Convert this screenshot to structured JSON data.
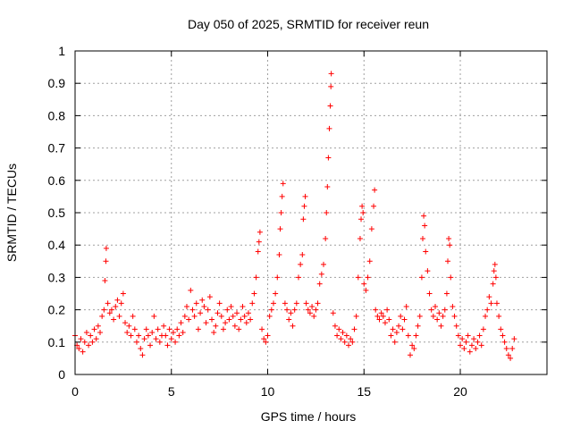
{
  "chart_data": {
    "type": "scatter",
    "title": "Day 050 of 2025, SRMTID for receiver reun",
    "xlabel": "GPS time / hours",
    "ylabel": "SRMTID / TECUs",
    "xlim": [
      0,
      24.5
    ],
    "ylim": [
      0,
      1
    ],
    "xticks": [
      0,
      5,
      10,
      15,
      20
    ],
    "xtick_labels": [
      "0",
      "5",
      "10",
      "15",
      "20"
    ],
    "yticks": [
      0,
      0.1,
      0.2,
      0.3,
      0.4,
      0.5,
      0.6,
      0.7,
      0.8,
      0.9,
      1
    ],
    "ytick_labels": [
      "0",
      "0.1",
      "0.2",
      "0.3",
      "0.4",
      "0.5",
      "0.6",
      "0.7",
      "0.8",
      "0.9",
      "1"
    ],
    "grid": true,
    "marker": "+",
    "marker_color": "#ff0000",
    "series": [
      {
        "name": "SRMTID",
        "points": [
          [
            0.0,
            0.12
          ],
          [
            0.1,
            0.09
          ],
          [
            0.2,
            0.08
          ],
          [
            0.3,
            0.11
          ],
          [
            0.4,
            0.07
          ],
          [
            0.5,
            0.1
          ],
          [
            0.6,
            0.13
          ],
          [
            0.7,
            0.09
          ],
          [
            0.8,
            0.12
          ],
          [
            0.9,
            0.1
          ],
          [
            1.0,
            0.14
          ],
          [
            1.1,
            0.11
          ],
          [
            1.2,
            0.15
          ],
          [
            1.3,
            0.13
          ],
          [
            1.4,
            0.18
          ],
          [
            1.5,
            0.2
          ],
          [
            1.55,
            0.29
          ],
          [
            1.6,
            0.35
          ],
          [
            1.62,
            0.39
          ],
          [
            1.7,
            0.22
          ],
          [
            1.8,
            0.19
          ],
          [
            1.9,
            0.2
          ],
          [
            2.0,
            0.17
          ],
          [
            2.1,
            0.21
          ],
          [
            2.2,
            0.23
          ],
          [
            2.3,
            0.18
          ],
          [
            2.4,
            0.22
          ],
          [
            2.5,
            0.25
          ],
          [
            2.6,
            0.16
          ],
          [
            2.7,
            0.13
          ],
          [
            2.8,
            0.15
          ],
          [
            2.9,
            0.12
          ],
          [
            3.0,
            0.18
          ],
          [
            3.1,
            0.14
          ],
          [
            3.2,
            0.1
          ],
          [
            3.3,
            0.12
          ],
          [
            3.4,
            0.08
          ],
          [
            3.5,
            0.06
          ],
          [
            3.6,
            0.11
          ],
          [
            3.7,
            0.14
          ],
          [
            3.8,
            0.12
          ],
          [
            3.9,
            0.09
          ],
          [
            4.0,
            0.13
          ],
          [
            4.1,
            0.18
          ],
          [
            4.2,
            0.11
          ],
          [
            4.3,
            0.14
          ],
          [
            4.4,
            0.1
          ],
          [
            4.5,
            0.12
          ],
          [
            4.6,
            0.15
          ],
          [
            4.7,
            0.12
          ],
          [
            4.8,
            0.09
          ],
          [
            4.9,
            0.14
          ],
          [
            5.0,
            0.11
          ],
          [
            5.1,
            0.13
          ],
          [
            5.2,
            0.1
          ],
          [
            5.3,
            0.14
          ],
          [
            5.4,
            0.12
          ],
          [
            5.5,
            0.16
          ],
          [
            5.6,
            0.13
          ],
          [
            5.7,
            0.18
          ],
          [
            5.8,
            0.21
          ],
          [
            5.9,
            0.17
          ],
          [
            6.0,
            0.26
          ],
          [
            6.1,
            0.2
          ],
          [
            6.2,
            0.18
          ],
          [
            6.3,
            0.22
          ],
          [
            6.4,
            0.14
          ],
          [
            6.5,
            0.19
          ],
          [
            6.6,
            0.23
          ],
          [
            6.7,
            0.21
          ],
          [
            6.8,
            0.16
          ],
          [
            6.9,
            0.2
          ],
          [
            7.0,
            0.24
          ],
          [
            7.1,
            0.17
          ],
          [
            7.2,
            0.13
          ],
          [
            7.3,
            0.15
          ],
          [
            7.4,
            0.19
          ],
          [
            7.5,
            0.22
          ],
          [
            7.6,
            0.18
          ],
          [
            7.7,
            0.14
          ],
          [
            7.8,
            0.16
          ],
          [
            7.9,
            0.2
          ],
          [
            8.0,
            0.17
          ],
          [
            8.1,
            0.21
          ],
          [
            8.2,
            0.18
          ],
          [
            8.3,
            0.15
          ],
          [
            8.4,
            0.19
          ],
          [
            8.5,
            0.14
          ],
          [
            8.6,
            0.17
          ],
          [
            8.7,
            0.21
          ],
          [
            8.8,
            0.18
          ],
          [
            8.9,
            0.16
          ],
          [
            9.0,
            0.19
          ],
          [
            9.1,
            0.17
          ],
          [
            9.2,
            0.22
          ],
          [
            9.3,
            0.25
          ],
          [
            9.4,
            0.3
          ],
          [
            9.5,
            0.38
          ],
          [
            9.55,
            0.41
          ],
          [
            9.6,
            0.44
          ],
          [
            9.7,
            0.14
          ],
          [
            9.8,
            0.11
          ],
          [
            9.9,
            0.1
          ],
          [
            10.0,
            0.12
          ],
          [
            10.1,
            0.18
          ],
          [
            10.2,
            0.2
          ],
          [
            10.3,
            0.22
          ],
          [
            10.4,
            0.25
          ],
          [
            10.5,
            0.3
          ],
          [
            10.6,
            0.37
          ],
          [
            10.65,
            0.45
          ],
          [
            10.7,
            0.5
          ],
          [
            10.75,
            0.55
          ],
          [
            10.8,
            0.59
          ],
          [
            10.9,
            0.22
          ],
          [
            11.0,
            0.2
          ],
          [
            11.1,
            0.17
          ],
          [
            11.2,
            0.19
          ],
          [
            11.3,
            0.15
          ],
          [
            11.4,
            0.2
          ],
          [
            11.5,
            0.22
          ],
          [
            11.6,
            0.3
          ],
          [
            11.7,
            0.34
          ],
          [
            11.8,
            0.37
          ],
          [
            11.85,
            0.48
          ],
          [
            11.9,
            0.52
          ],
          [
            11.95,
            0.55
          ],
          [
            12.0,
            0.22
          ],
          [
            12.1,
            0.2
          ],
          [
            12.2,
            0.19
          ],
          [
            12.3,
            0.21
          ],
          [
            12.4,
            0.18
          ],
          [
            12.5,
            0.2
          ],
          [
            12.6,
            0.22
          ],
          [
            12.7,
            0.28
          ],
          [
            12.8,
            0.31
          ],
          [
            12.9,
            0.34
          ],
          [
            13.0,
            0.42
          ],
          [
            13.05,
            0.5
          ],
          [
            13.1,
            0.58
          ],
          [
            13.15,
            0.67
          ],
          [
            13.2,
            0.76
          ],
          [
            13.25,
            0.83
          ],
          [
            13.28,
            0.89
          ],
          [
            13.3,
            0.93
          ],
          [
            13.4,
            0.19
          ],
          [
            13.5,
            0.15
          ],
          [
            13.6,
            0.12
          ],
          [
            13.7,
            0.14
          ],
          [
            13.8,
            0.11
          ],
          [
            13.9,
            0.13
          ],
          [
            14.0,
            0.1
          ],
          [
            14.1,
            0.12
          ],
          [
            14.2,
            0.09
          ],
          [
            14.3,
            0.11
          ],
          [
            14.4,
            0.1
          ],
          [
            14.5,
            0.14
          ],
          [
            14.6,
            0.18
          ],
          [
            14.7,
            0.3
          ],
          [
            14.8,
            0.42
          ],
          [
            14.85,
            0.48
          ],
          [
            14.9,
            0.52
          ],
          [
            14.95,
            0.5
          ],
          [
            15.0,
            0.28
          ],
          [
            15.1,
            0.26
          ],
          [
            15.2,
            0.3
          ],
          [
            15.3,
            0.35
          ],
          [
            15.4,
            0.45
          ],
          [
            15.5,
            0.52
          ],
          [
            15.55,
            0.57
          ],
          [
            15.6,
            0.2
          ],
          [
            15.7,
            0.18
          ],
          [
            15.8,
            0.17
          ],
          [
            15.9,
            0.19
          ],
          [
            16.0,
            0.18
          ],
          [
            16.1,
            0.16
          ],
          [
            16.2,
            0.2
          ],
          [
            16.3,
            0.17
          ],
          [
            16.4,
            0.12
          ],
          [
            16.5,
            0.14
          ],
          [
            16.6,
            0.1
          ],
          [
            16.7,
            0.13
          ],
          [
            16.8,
            0.15
          ],
          [
            16.9,
            0.18
          ],
          [
            17.0,
            0.14
          ],
          [
            17.1,
            0.17
          ],
          [
            17.2,
            0.21
          ],
          [
            17.3,
            0.12
          ],
          [
            17.4,
            0.06
          ],
          [
            17.5,
            0.09
          ],
          [
            17.6,
            0.08
          ],
          [
            17.7,
            0.12
          ],
          [
            17.8,
            0.15
          ],
          [
            17.9,
            0.18
          ],
          [
            18.0,
            0.3
          ],
          [
            18.05,
            0.42
          ],
          [
            18.1,
            0.49
          ],
          [
            18.15,
            0.46
          ],
          [
            18.2,
            0.38
          ],
          [
            18.3,
            0.32
          ],
          [
            18.4,
            0.25
          ],
          [
            18.5,
            0.2
          ],
          [
            18.6,
            0.18
          ],
          [
            18.7,
            0.21
          ],
          [
            18.8,
            0.17
          ],
          [
            18.9,
            0.19
          ],
          [
            19.0,
            0.15
          ],
          [
            19.1,
            0.18
          ],
          [
            19.2,
            0.2
          ],
          [
            19.3,
            0.25
          ],
          [
            19.35,
            0.35
          ],
          [
            19.4,
            0.42
          ],
          [
            19.45,
            0.4
          ],
          [
            19.5,
            0.3
          ],
          [
            19.6,
            0.21
          ],
          [
            19.7,
            0.18
          ],
          [
            19.8,
            0.15
          ],
          [
            19.9,
            0.12
          ],
          [
            20.0,
            0.09
          ],
          [
            20.1,
            0.11
          ],
          [
            20.2,
            0.08
          ],
          [
            20.3,
            0.1
          ],
          [
            20.4,
            0.12
          ],
          [
            20.5,
            0.07
          ],
          [
            20.6,
            0.09
          ],
          [
            20.7,
            0.11
          ],
          [
            20.8,
            0.08
          ],
          [
            20.9,
            0.1
          ],
          [
            21.0,
            0.12
          ],
          [
            21.1,
            0.09
          ],
          [
            21.2,
            0.14
          ],
          [
            21.3,
            0.18
          ],
          [
            21.4,
            0.2
          ],
          [
            21.5,
            0.24
          ],
          [
            21.6,
            0.22
          ],
          [
            21.7,
            0.28
          ],
          [
            21.75,
            0.32
          ],
          [
            21.8,
            0.34
          ],
          [
            21.85,
            0.3
          ],
          [
            21.9,
            0.22
          ],
          [
            22.0,
            0.18
          ],
          [
            22.1,
            0.14
          ],
          [
            22.2,
            0.12
          ],
          [
            22.3,
            0.1
          ],
          [
            22.4,
            0.08
          ],
          [
            22.5,
            0.06
          ],
          [
            22.6,
            0.05
          ],
          [
            22.7,
            0.08
          ],
          [
            22.8,
            0.11
          ]
        ]
      }
    ]
  }
}
